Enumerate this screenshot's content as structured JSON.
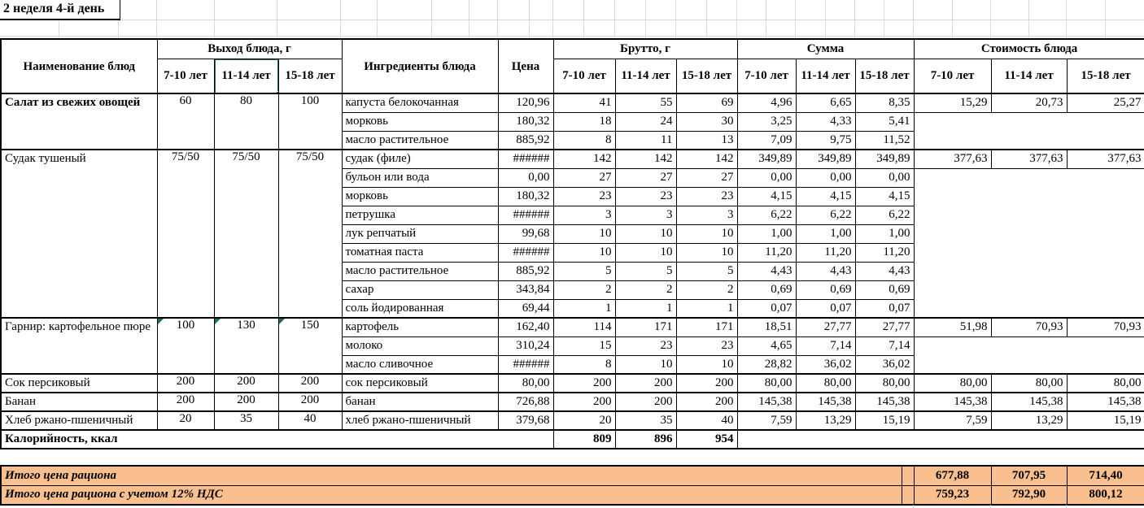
{
  "title": "2 неделя 4-й день",
  "header": {
    "name": "Наименование блюд",
    "output_group": "Выход блюда, г",
    "ingredients": "Ингредиенты блюда",
    "price": "Цена",
    "gross_group": "Брутто, г",
    "sum_group": "Сумма",
    "cost_group": "Стоимость блюда",
    "age_labels": [
      "7-10 лет",
      "11-14 лет",
      "15-18 лет"
    ]
  },
  "dishes": [
    {
      "name": "Салат из свежих овощей",
      "bold": true,
      "flags": false,
      "outputs": [
        "60",
        "80",
        "100"
      ],
      "cost": [
        "15,29",
        "20,73",
        "25,27"
      ],
      "ingredients": [
        {
          "name": "капуста белокочанная",
          "price": "120,96",
          "gross": [
            "41",
            "55",
            "69"
          ],
          "sum": [
            "4,96",
            "6,65",
            "8,35"
          ]
        },
        {
          "name": "морковь",
          "price": "180,32",
          "gross": [
            "18",
            "24",
            "30"
          ],
          "sum": [
            "3,25",
            "4,33",
            "5,41"
          ]
        },
        {
          "name": "масло растительное",
          "price": "885,92",
          "gross": [
            "8",
            "11",
            "13"
          ],
          "sum": [
            "7,09",
            "9,75",
            "11,52"
          ]
        }
      ]
    },
    {
      "name": "Судак тушеный",
      "bold": false,
      "flags": false,
      "outputs": [
        "75/50",
        "75/50",
        "75/50"
      ],
      "cost": [
        "377,63",
        "377,63",
        "377,63"
      ],
      "ingredients": [
        {
          "name": "судак (филе)",
          "price": "######",
          "gross": [
            "142",
            "142",
            "142"
          ],
          "sum": [
            "349,89",
            "349,89",
            "349,89"
          ]
        },
        {
          "name": "бульон или вода",
          "price": "0,00",
          "gross": [
            "27",
            "27",
            "27"
          ],
          "sum": [
            "0,00",
            "0,00",
            "0,00"
          ]
        },
        {
          "name": "морковь",
          "price": "180,32",
          "gross": [
            "23",
            "23",
            "23"
          ],
          "sum": [
            "4,15",
            "4,15",
            "4,15"
          ]
        },
        {
          "name": "петрушка",
          "price": "######",
          "gross": [
            "3",
            "3",
            "3"
          ],
          "sum": [
            "6,22",
            "6,22",
            "6,22"
          ]
        },
        {
          "name": "лук репчатый",
          "price": "99,68",
          "gross": [
            "10",
            "10",
            "10"
          ],
          "sum": [
            "1,00",
            "1,00",
            "1,00"
          ]
        },
        {
          "name": "томатная паста",
          "price": "######",
          "gross": [
            "10",
            "10",
            "10"
          ],
          "sum": [
            "11,20",
            "11,20",
            "11,20"
          ]
        },
        {
          "name": "масло растительное",
          "price": "885,92",
          "gross": [
            "5",
            "5",
            "5"
          ],
          "sum": [
            "4,43",
            "4,43",
            "4,43"
          ]
        },
        {
          "name": "сахар",
          "price": "343,84",
          "gross": [
            "2",
            "2",
            "2"
          ],
          "sum": [
            "0,69",
            "0,69",
            "0,69"
          ]
        },
        {
          "name": "соль йодированная",
          "price": "69,44",
          "gross": [
            "1",
            "1",
            "1"
          ],
          "sum": [
            "0,07",
            "0,07",
            "0,07"
          ]
        }
      ]
    },
    {
      "name": "Гарнир: картофельное пюре",
      "bold": false,
      "flags": true,
      "outputs": [
        "100",
        "130",
        "150"
      ],
      "cost": [
        "51,98",
        "70,93",
        "70,93"
      ],
      "ingredients": [
        {
          "name": "картофель",
          "price": "162,40",
          "gross": [
            "114",
            "171",
            "171"
          ],
          "sum": [
            "18,51",
            "27,77",
            "27,77"
          ]
        },
        {
          "name": "молоко",
          "price": "310,24",
          "gross": [
            "15",
            "23",
            "23"
          ],
          "sum": [
            "4,65",
            "7,14",
            "7,14"
          ]
        },
        {
          "name": "масло сливочное",
          "price": "######",
          "gross": [
            "8",
            "10",
            "10"
          ],
          "sum": [
            "28,82",
            "36,02",
            "36,02"
          ]
        }
      ]
    },
    {
      "name": "Сок персиковый",
      "bold": false,
      "flags": false,
      "outputs": [
        "200",
        "200",
        "200"
      ],
      "cost": [
        "80,00",
        "80,00",
        "80,00"
      ],
      "ingredients": [
        {
          "name": "сок персиковый",
          "price": "80,00",
          "gross": [
            "200",
            "200",
            "200"
          ],
          "sum": [
            "80,00",
            "80,00",
            "80,00"
          ]
        }
      ]
    },
    {
      "name": "Банан",
      "bold": false,
      "flags": false,
      "outputs": [
        "200",
        "200",
        "200"
      ],
      "cost": [
        "145,38",
        "145,38",
        "145,38"
      ],
      "ingredients": [
        {
          "name": "банан",
          "price": "726,88",
          "gross": [
            "200",
            "200",
            "200"
          ],
          "sum": [
            "145,38",
            "145,38",
            "145,38"
          ]
        }
      ]
    },
    {
      "name": "Хлеб ржано-пшеничный",
      "bold": false,
      "flags": false,
      "outputs": [
        "20",
        "35",
        "40"
      ],
      "cost": [
        "7,59",
        "13,29",
        "15,19"
      ],
      "ingredients": [
        {
          "name": "хлеб ржано-пшеничный",
          "price": "379,68",
          "gross": [
            "20",
            "35",
            "40"
          ],
          "sum": [
            "7,59",
            "13,29",
            "15,19"
          ]
        }
      ]
    }
  ],
  "calories": {
    "label": "Калорийность, ккал",
    "values": [
      "809",
      "896",
      "954"
    ]
  },
  "totals": [
    {
      "label": "Итого цена рациона",
      "values": [
        "677,88",
        "707,95",
        "714,40"
      ]
    },
    {
      "label": "Итого цена рациона с учетом 12% НДС",
      "values": [
        "759,23",
        "792,90",
        "800,12"
      ]
    }
  ],
  "colors": {
    "totals_background": "#FABF8F",
    "selection_green": "#217346",
    "error_flag_green": "#1F7246",
    "gridline_gray": "#D9D9D9",
    "border_black": "#000000"
  }
}
